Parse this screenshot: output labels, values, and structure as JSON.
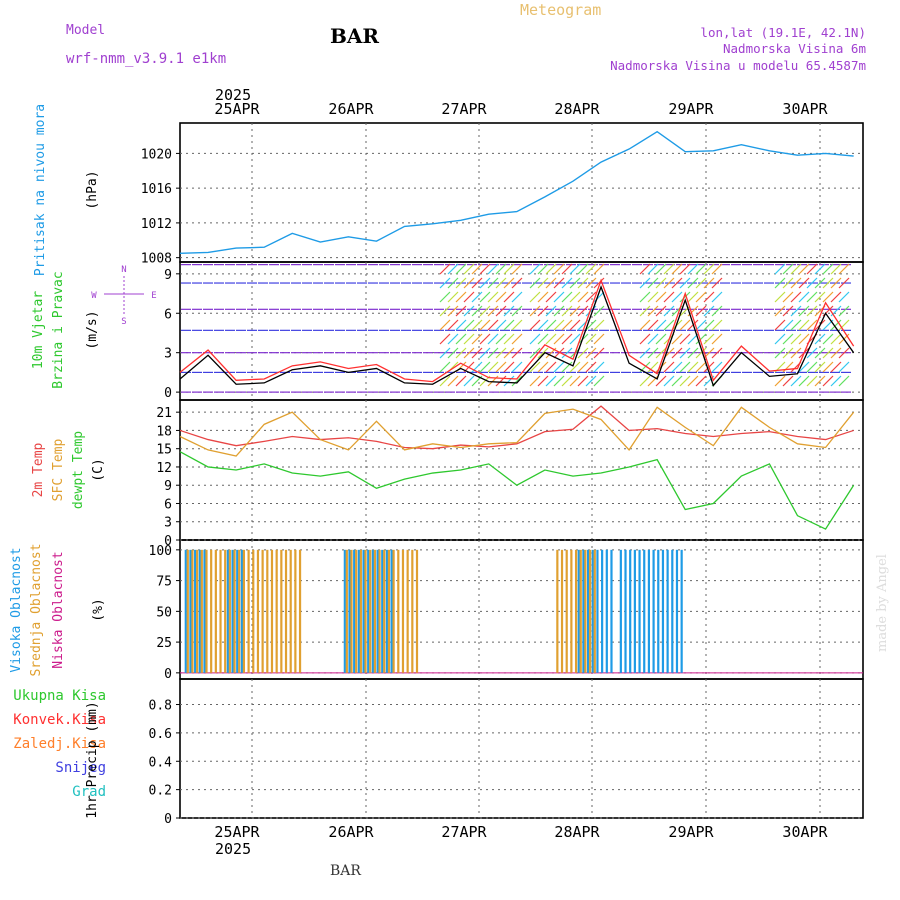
{
  "header": {
    "title": "BAR",
    "product": "Meteogram",
    "model_label": "Model",
    "model_name": "wrf-nmm_v3.9.1 e1km",
    "lonlat": "lon,lat (19.1E, 42.1N)",
    "elevation": "Nadmorska Visina 6m",
    "model_elevation": "Nadmorska Visina u modelu 65.4587m",
    "watermark": "made by Angel",
    "footer_title": "BAR"
  },
  "colors": {
    "pressure": "#1e9be6",
    "wind_speed": "#000000",
    "wind_gust": "#ff3030",
    "temp_2m": "#e84545",
    "temp_sfc": "#e0a030",
    "dewpt": "#2ec82e",
    "cloud_high": "#1e9be6",
    "cloud_mid": "#e0a030",
    "cloud_low": "#cc1c8c",
    "precip_total": "#2ec82e",
    "precip_conv": "#ff3030",
    "precip_frz": "#ff7f2a",
    "precip_snow": "#4040e0",
    "precip_graupel": "#20c0c0",
    "title_purple": "#a040d0",
    "grid": "#666666"
  },
  "time_axis": {
    "year": "2025",
    "days": [
      "25APR",
      "26APR",
      "27APR",
      "28APR",
      "29APR",
      "30APR"
    ]
  },
  "chart_data": [
    {
      "type": "line",
      "name": "pressure",
      "ylabel": [
        "Pritisak na nivou mora",
        "(hPa)"
      ],
      "yticks": [
        1008,
        1012,
        1016,
        1020
      ],
      "ylim": [
        1007.5,
        1023.5
      ],
      "x_hours": [
        0,
        6,
        12,
        18,
        24,
        30,
        36,
        42,
        48,
        54,
        60,
        66,
        72,
        78,
        84,
        90,
        96,
        102,
        108,
        114,
        120,
        126,
        132,
        138,
        144
      ],
      "values": [
        1008.5,
        1008.6,
        1009.1,
        1009.2,
        1010.8,
        1009.8,
        1010.4,
        1009.9,
        1011.6,
        1011.9,
        1012.3,
        1013.0,
        1013.3,
        1015.0,
        1016.8,
        1019.0,
        1020.5,
        1022.5,
        1020.2,
        1020.3,
        1021.0,
        1020.3,
        1019.8,
        1020.0,
        1019.7
      ]
    },
    {
      "type": "line",
      "name": "wind",
      "ylabel": [
        "10m Vjetar",
        "Brzina i Pravac",
        "(m/s)"
      ],
      "compass": [
        "N",
        "W",
        "E",
        "S"
      ],
      "yticks": [
        0,
        3,
        6,
        9
      ],
      "ylim": [
        -0.6,
        9.9
      ],
      "series": [
        {
          "key": "speed",
          "x_hours": [
            0,
            6,
            12,
            18,
            24,
            30,
            36,
            42,
            48,
            54,
            60,
            66,
            72,
            78,
            84,
            90,
            96,
            102,
            108,
            114,
            120,
            126,
            132,
            138,
            144
          ],
          "values": [
            1.0,
            2.8,
            0.6,
            0.7,
            1.7,
            2.0,
            1.5,
            1.8,
            0.7,
            0.6,
            1.8,
            0.8,
            0.7,
            3.0,
            2.0,
            8.0,
            2.2,
            1.0,
            7.0,
            0.5,
            3.0,
            1.2,
            1.4,
            6.0,
            3.0
          ]
        },
        {
          "key": "gust",
          "x_hours": [
            0,
            6,
            12,
            18,
            24,
            30,
            36,
            42,
            48,
            54,
            60,
            66,
            72,
            78,
            84,
            90,
            96,
            102,
            108,
            114,
            120,
            126,
            132,
            138,
            144
          ],
          "values": [
            1.5,
            3.2,
            0.9,
            1.0,
            2.0,
            2.3,
            1.8,
            2.1,
            1.0,
            0.8,
            2.2,
            1.1,
            1.0,
            3.6,
            2.5,
            8.5,
            2.8,
            1.4,
            7.5,
            0.9,
            3.5,
            1.6,
            1.8,
            6.8,
            3.5
          ]
        }
      ]
    },
    {
      "type": "line",
      "name": "temperature",
      "ylabel": [
        "2m Temp",
        "SFC Temp",
        "dewpt Temp",
        "(C)"
      ],
      "yticks": [
        0,
        3,
        6,
        9,
        12,
        15,
        18,
        21
      ],
      "ylim": [
        0,
        23
      ],
      "x_hours": [
        0,
        6,
        12,
        18,
        24,
        30,
        36,
        42,
        48,
        54,
        60,
        66,
        72,
        78,
        84,
        90,
        96,
        102,
        108,
        114,
        120,
        126,
        132,
        138,
        144
      ],
      "series": [
        {
          "key": "t2m",
          "values": [
            18.0,
            16.5,
            15.5,
            16.2,
            17.0,
            16.5,
            16.8,
            16.2,
            15.2,
            15.0,
            15.6,
            15.3,
            15.8,
            17.8,
            18.2,
            22.0,
            18.0,
            18.3,
            17.5,
            17.0,
            17.5,
            17.8,
            17.0,
            16.5,
            18.0
          ]
        },
        {
          "key": "tsfc",
          "values": [
            17.0,
            14.8,
            13.8,
            19.0,
            21.0,
            16.5,
            14.8,
            19.5,
            14.8,
            15.8,
            15.2,
            15.8,
            16.0,
            20.8,
            21.5,
            19.8,
            14.8,
            21.8,
            18.5,
            15.5,
            21.8,
            18.5,
            15.8,
            15.2,
            21.0
          ]
        },
        {
          "key": "dewpt",
          "values": [
            14.5,
            12.0,
            11.5,
            12.5,
            11.0,
            10.5,
            11.2,
            8.5,
            10.0,
            11.0,
            11.5,
            12.5,
            9.0,
            11.5,
            10.5,
            11.0,
            12.0,
            13.2,
            5.0,
            6.0,
            10.5,
            12.5,
            4.0,
            1.8,
            9.0
          ]
        }
      ]
    },
    {
      "type": "bar",
      "name": "cloud_cover",
      "ylabel": [
        "Visoka Oblacnost",
        "Srednja Oblacnost",
        "Niska Oblacnost",
        "(%)"
      ],
      "yticks": [
        0,
        25,
        50,
        75,
        100
      ],
      "ylim": [
        -5,
        108
      ],
      "series": [
        {
          "key": "high",
          "spans_hours": [
            [
              1,
              5
            ],
            [
              10,
              13
            ],
            [
              35,
              45
            ],
            [
              85,
              92
            ],
            [
              94,
              107
            ]
          ],
          "value_percent": 100
        },
        {
          "key": "mid",
          "spans_hours": [
            [
              1,
              25
            ],
            [
              35,
              50
            ],
            [
              80,
              88
            ]
          ],
          "value_percent": 100
        },
        {
          "key": "low",
          "spans_hours": [],
          "value_percent": 0
        }
      ]
    },
    {
      "type": "bar",
      "name": "precipitation",
      "ylabel": [
        "1hr Precip (mm)"
      ],
      "legend": [
        "Ukupna Kisa",
        "Konvek.Kisa",
        "Zaledj.Kisa",
        "Snijeg",
        "Grad"
      ],
      "yticks": [
        0,
        0.2,
        0.4,
        0.6,
        0.8
      ],
      "ylim": [
        0,
        0.98
      ],
      "values": []
    }
  ]
}
